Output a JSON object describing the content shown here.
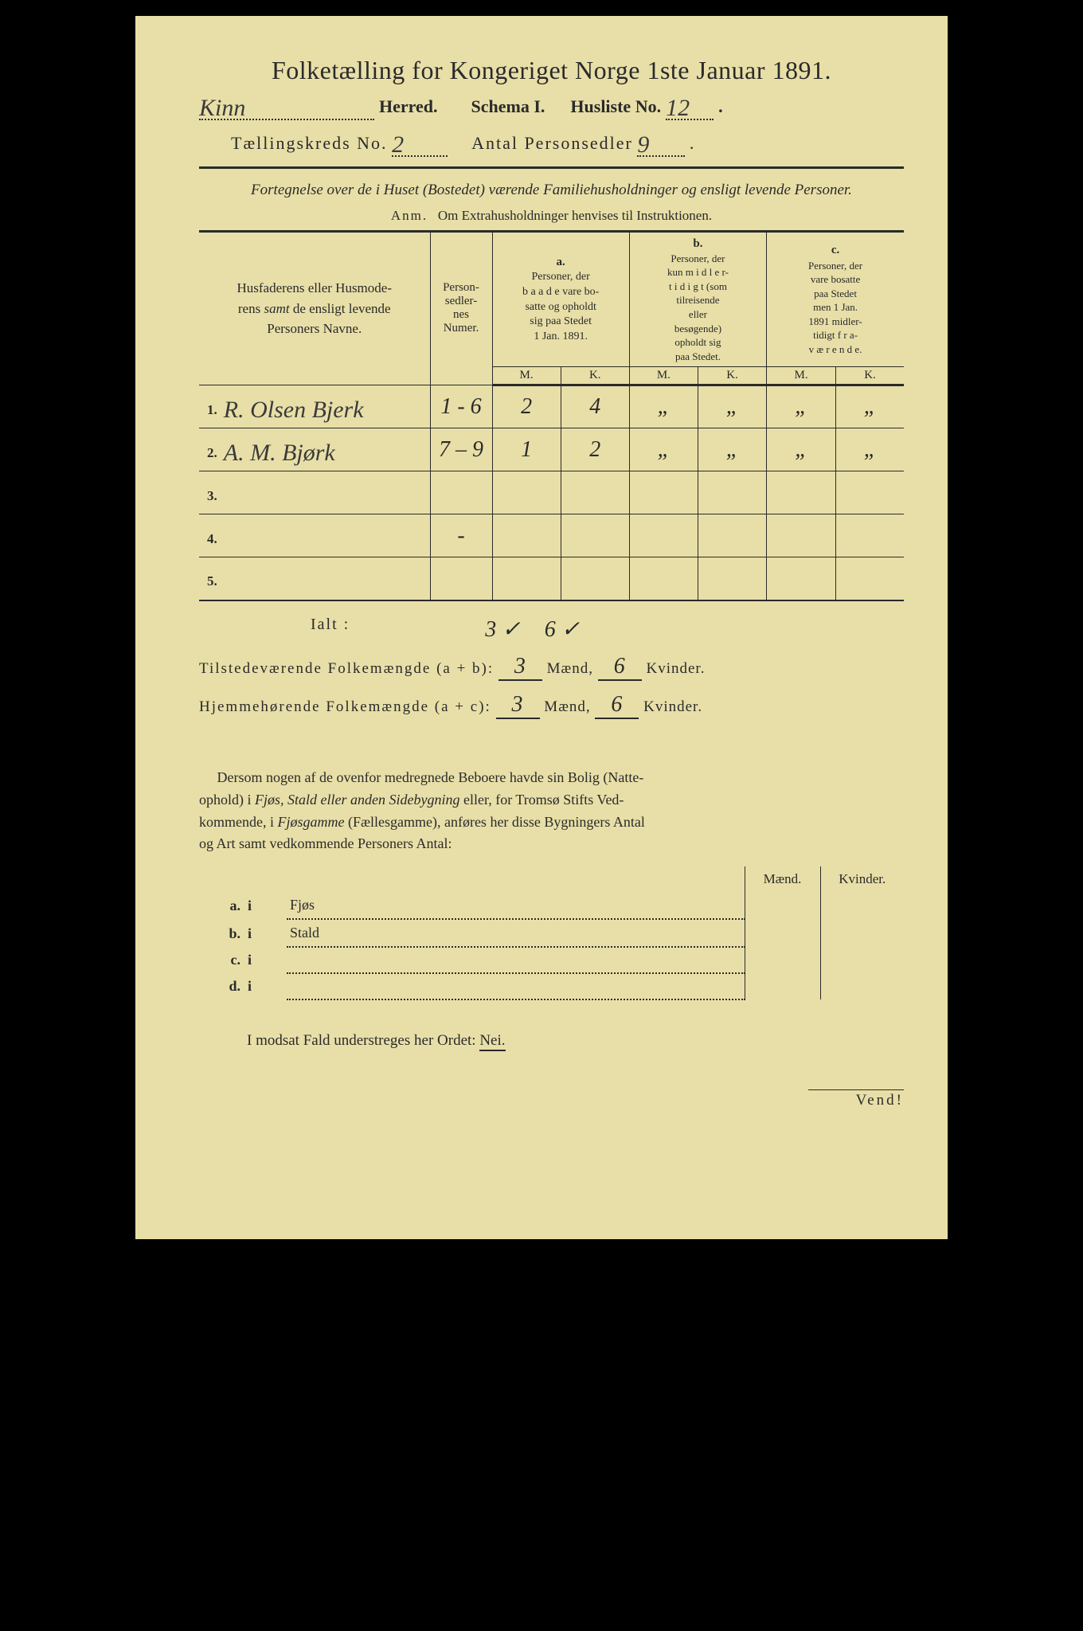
{
  "title": "Folketælling for Kongeriget Norge 1ste Januar 1891.",
  "herred_hw": "Kinn",
  "herred_label": "Herred.",
  "schema_label": "Schema I.",
  "husliste_label": "Husliste No.",
  "husliste_hw": "12",
  "kreds_label": "Tællingskreds No.",
  "kreds_hw": "2",
  "antal_label": "Antal Personsedler",
  "antal_hw": "9",
  "subtitle_ital": "Fortegnelse over de i Huset (Bostedet) værende Familiehusholdninger og ensligt levende Personer.",
  "anm_prefix": "Anm.",
  "anm_text": "Om Extrahusholdninger henvises til Instruktionen.",
  "table": {
    "col1": "Husfaderens eller Husmoderens samt de ensligt levende Personers Navne.",
    "col2": "Person-\nsedler-\nnes\nNumer.",
    "a_label": "a.",
    "a_text": "Personer, der baade vare bosatte og opholdt sig paa Stedet 1 Jan. 1891.",
    "b_label": "b.",
    "b_text": "Personer, der kun midlertidigt (som tilreisende eller besøgende) opholdt sig paa Stedet.",
    "c_label": "c.",
    "c_text": "Personer, der vare bosatte paa Stedet men 1 Jan. 1891 midlertidigt fraværende.",
    "m": "M.",
    "k": "K.",
    "rows": [
      {
        "n": "1.",
        "name": "R. Olsen Bjerk",
        "num": "1 - 6",
        "am": "2",
        "ak": "4",
        "bm": "„",
        "bk": "„",
        "cm": "„",
        "ck": "„"
      },
      {
        "n": "2.",
        "name": "A. M. Bjørk",
        "num": "7 – 9",
        "am": "1",
        "ak": "2",
        "bm": "„",
        "bk": "„",
        "cm": "„",
        "ck": "„"
      },
      {
        "n": "3.",
        "name": "",
        "num": "",
        "am": "",
        "ak": "",
        "bm": "",
        "bk": "",
        "cm": "",
        "ck": ""
      },
      {
        "n": "4.",
        "name": "",
        "num": "-",
        "am": "",
        "ak": "",
        "bm": "",
        "bk": "",
        "cm": "",
        "ck": ""
      },
      {
        "n": "5.",
        "name": "",
        "num": "",
        "am": "",
        "ak": "",
        "bm": "",
        "bk": "",
        "cm": "",
        "ck": ""
      }
    ]
  },
  "ialt": "Ialt :",
  "ialt_hw_m": "3 ✓",
  "ialt_hw_k": "6 ✓",
  "tilstede_label": "Tilstedeværende Folkemængde (a + b):",
  "tilstede_m": "3",
  "tilstede_k": "6",
  "hjemme_label": "Hjemmehørende Folkemængde (a + c):",
  "hjemme_m": "3",
  "hjemme_k": "6",
  "maend": "Mænd,",
  "kvinder": "Kvinder.",
  "para_text": "Dersom nogen af de ovenfor medregnede Beboere havde sin Bolig (Natteophold) i Fjøs, Stald eller anden Sidebygning eller, for Tromsø Stifts Vedkommende, i Fjøsgamme (Fællesgamme), anføres her disse Bygningers Antal og Art samt vedkommende Personers Antal:",
  "sub_maend": "Mænd.",
  "sub_kvinder": "Kvinder.",
  "sub_rows": [
    {
      "l": "a.",
      "i": "i",
      "t": "Fjøs"
    },
    {
      "l": "b.",
      "i": "i",
      "t": "Stald"
    },
    {
      "l": "c.",
      "i": "i",
      "t": ""
    },
    {
      "l": "d.",
      "i": "i",
      "t": ""
    }
  ],
  "nei_text": "I modsat Fald understreges her Ordet:",
  "nei": "Nei.",
  "vend": "Vend!"
}
